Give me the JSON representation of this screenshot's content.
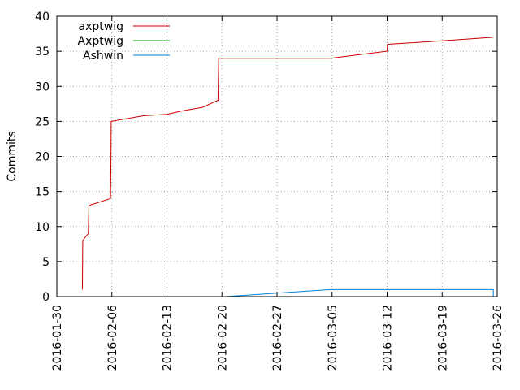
{
  "chart_data": {
    "type": "line",
    "title": "",
    "xlabel": "",
    "ylabel": "Commits",
    "xlim": [
      "2016-01-30",
      "2016-03-26"
    ],
    "ylim": [
      0,
      40
    ],
    "x_ticks": [
      "2016-01-30",
      "2016-02-06",
      "2016-02-13",
      "2016-02-20",
      "2016-02-27",
      "2016-03-05",
      "2016-03-12",
      "2016-03-19",
      "2016-03-26"
    ],
    "y_ticks": [
      0,
      5,
      10,
      15,
      20,
      25,
      30,
      35,
      40
    ],
    "grid": "dotted",
    "legend_position": "top-left",
    "series": [
      {
        "name": "axptwig",
        "color": "#cc0000",
        "points": [
          [
            "2016-02-02T06:00",
            1
          ],
          [
            "2016-02-02T06:00",
            2
          ],
          [
            "2016-02-02T07:00",
            8
          ],
          [
            "2016-02-03T00:00",
            9
          ],
          [
            "2016-02-03T02:00",
            13
          ],
          [
            "2016-02-05T20:00",
            14
          ],
          [
            "2016-02-05T21:00",
            18
          ],
          [
            "2016-02-05T22:00",
            25
          ],
          [
            "2016-02-10T00:00",
            25.8
          ],
          [
            "2016-02-13T00:00",
            26
          ],
          [
            "2016-02-15T00:00",
            26.5
          ],
          [
            "2016-02-17T12:00",
            27
          ],
          [
            "2016-02-19T12:00",
            28
          ],
          [
            "2016-02-19T14:00",
            34
          ],
          [
            "2016-03-04T20:00",
            34
          ],
          [
            "2016-03-09T00:00",
            34.6
          ],
          [
            "2016-03-12T00:00",
            35
          ],
          [
            "2016-03-12T01:00",
            36
          ],
          [
            "2016-03-15T00:00",
            36.2
          ],
          [
            "2016-03-19T00:00",
            36.5
          ],
          [
            "2016-03-25T12:00",
            37
          ]
        ]
      },
      {
        "name": "Axptwig",
        "color": "#00aa00",
        "points": [
          [
            "2016-02-19T12:00",
            0
          ],
          [
            "2016-03-25T12:00",
            0
          ]
        ]
      },
      {
        "name": "Ashwin",
        "color": "#0080d0",
        "points": [
          [
            "2016-02-20T12:00",
            0
          ],
          [
            "2016-02-27T00:00",
            0.5
          ],
          [
            "2016-03-04T18:00",
            1
          ],
          [
            "2016-03-25T12:00",
            1
          ],
          [
            "2016-03-25T12:00",
            0
          ]
        ]
      }
    ]
  }
}
